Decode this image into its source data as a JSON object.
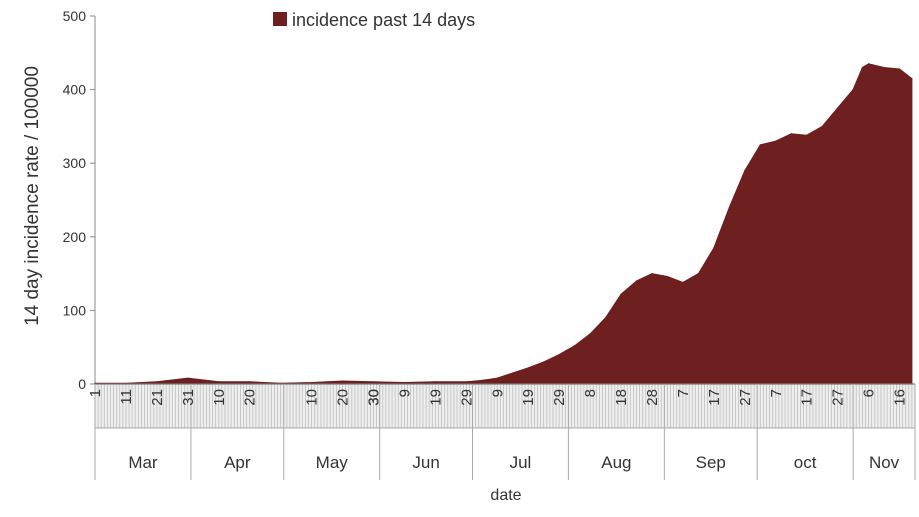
{
  "chart_data": {
    "type": "area",
    "title": "",
    "xlabel": "date",
    "ylabel": "14 day incidence rate / 100000",
    "ylim": [
      0,
      500
    ],
    "yticks": [
      0,
      100,
      200,
      300,
      400,
      500
    ],
    "grid": false,
    "legend": {
      "position": "top-center",
      "entries": [
        "incidence past 14 days"
      ]
    },
    "months": [
      {
        "name": "Mar",
        "day_ticks": [
          "1",
          "11",
          "21",
          "31"
        ]
      },
      {
        "name": "Apr",
        "day_ticks": [
          "10",
          "20"
        ]
      },
      {
        "name": "May",
        "day_ticks": [
          "30",
          "10",
          "20",
          "30"
        ]
      },
      {
        "name": "Jun",
        "day_ticks": [
          "9",
          "19",
          "29"
        ]
      },
      {
        "name": "Jul",
        "day_ticks": [
          "9",
          "19",
          "29"
        ]
      },
      {
        "name": "Aug",
        "day_ticks": [
          "8",
          "18",
          "28"
        ]
      },
      {
        "name": "Sep",
        "day_ticks": [
          "7",
          "17",
          "27"
        ]
      },
      {
        "name": "oct",
        "day_ticks": [
          "7",
          "17",
          "27"
        ]
      },
      {
        "name": "Nov",
        "day_ticks": [
          "6",
          "16"
        ]
      }
    ],
    "series": [
      {
        "name": "incidence past 14 days",
        "color": "#6e1f1f",
        "x": [
          "2020-03-01",
          "2020-03-11",
          "2020-03-21",
          "2020-03-31",
          "2020-04-10",
          "2020-04-20",
          "2020-04-30",
          "2020-05-10",
          "2020-05-20",
          "2020-05-30",
          "2020-06-09",
          "2020-06-19",
          "2020-06-29",
          "2020-07-04",
          "2020-07-09",
          "2020-07-14",
          "2020-07-19",
          "2020-07-24",
          "2020-07-29",
          "2020-08-03",
          "2020-08-08",
          "2020-08-13",
          "2020-08-18",
          "2020-08-23",
          "2020-08-28",
          "2020-09-02",
          "2020-09-07",
          "2020-09-12",
          "2020-09-17",
          "2020-09-22",
          "2020-09-27",
          "2020-10-02",
          "2020-10-07",
          "2020-10-12",
          "2020-10-17",
          "2020-10-22",
          "2020-10-27",
          "2020-11-01",
          "2020-11-04",
          "2020-11-06",
          "2020-11-11",
          "2020-11-16",
          "2020-11-20"
        ],
        "values": [
          1,
          1,
          3,
          8,
          3,
          3,
          1,
          2,
          4,
          3,
          2,
          3,
          3,
          5,
          8,
          15,
          22,
          30,
          40,
          52,
          68,
          90,
          122,
          140,
          150,
          146,
          138,
          150,
          185,
          240,
          290,
          325,
          330,
          340,
          338,
          350,
          375,
          400,
          430,
          435,
          430,
          428,
          415
        ]
      }
    ]
  }
}
